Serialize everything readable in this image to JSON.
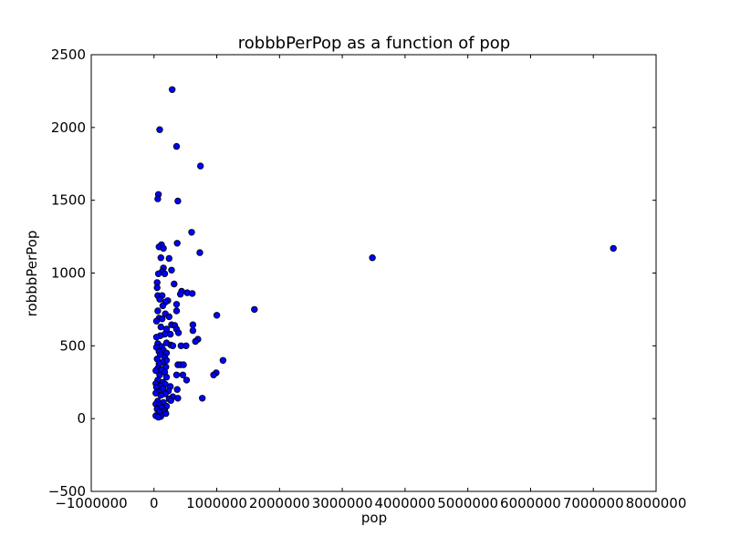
{
  "chart_data": {
    "type": "scatter",
    "title": "robbbPerPop as a function of pop",
    "xlabel": "pop",
    "ylabel": "robbbPerPop",
    "xlim": [
      -1000000,
      8000000
    ],
    "ylim": [
      -500,
      2500
    ],
    "x_ticks": [
      -1000000,
      0,
      1000000,
      2000000,
      3000000,
      4000000,
      5000000,
      6000000,
      7000000,
      8000000
    ],
    "x_tick_labels": [
      "−1000000",
      "0",
      "1000000",
      "2000000",
      "3000000",
      "4000000",
      "5000000",
      "6000000",
      "7000000",
      "8000000"
    ],
    "y_ticks": [
      -500,
      0,
      500,
      1000,
      1500,
      2000,
      2500
    ],
    "y_tick_labels": [
      "−500",
      "0",
      "500",
      "1000",
      "1500",
      "2000",
      "2500"
    ],
    "grid": false,
    "marker_color": "#0000ff",
    "marker_edge_color": "#000000",
    "points": [
      [
        290000,
        2260
      ],
      [
        90000,
        1985
      ],
      [
        360000,
        1870
      ],
      [
        740000,
        1735
      ],
      [
        70000,
        1540
      ],
      [
        60000,
        1510
      ],
      [
        380000,
        1495
      ],
      [
        600000,
        1280
      ],
      [
        370000,
        1205
      ],
      [
        120000,
        1195
      ],
      [
        80000,
        1180
      ],
      [
        150000,
        1170
      ],
      [
        730000,
        1140
      ],
      [
        3480000,
        1105
      ],
      [
        7320000,
        1170
      ],
      [
        110000,
        1105
      ],
      [
        240000,
        1100
      ],
      [
        150000,
        1035
      ],
      [
        280000,
        1020
      ],
      [
        130000,
        1010
      ],
      [
        70000,
        995
      ],
      [
        170000,
        995
      ],
      [
        320000,
        925
      ],
      [
        50000,
        935
      ],
      [
        50000,
        900
      ],
      [
        440000,
        875
      ],
      [
        530000,
        865
      ],
      [
        610000,
        860
      ],
      [
        420000,
        855
      ],
      [
        60000,
        845
      ],
      [
        130000,
        845
      ],
      [
        220000,
        810
      ],
      [
        90000,
        820
      ],
      [
        180000,
        800
      ],
      [
        360000,
        785
      ],
      [
        140000,
        775
      ],
      [
        1600000,
        750
      ],
      [
        60000,
        740
      ],
      [
        360000,
        740
      ],
      [
        180000,
        720
      ],
      [
        1000000,
        710
      ],
      [
        240000,
        700
      ],
      [
        80000,
        690
      ],
      [
        130000,
        685
      ],
      [
        40000,
        670
      ],
      [
        280000,
        645
      ],
      [
        330000,
        640
      ],
      [
        620000,
        645
      ],
      [
        110000,
        630
      ],
      [
        200000,
        615
      ],
      [
        360000,
        615
      ],
      [
        620000,
        605
      ],
      [
        390000,
        590
      ],
      [
        170000,
        580
      ],
      [
        260000,
        580
      ],
      [
        100000,
        570
      ],
      [
        40000,
        560
      ],
      [
        700000,
        545
      ],
      [
        660000,
        530
      ],
      [
        200000,
        520
      ],
      [
        60000,
        515
      ],
      [
        270000,
        505
      ],
      [
        300000,
        500
      ],
      [
        430000,
        500
      ],
      [
        510000,
        500
      ],
      [
        120000,
        495
      ],
      [
        40000,
        490
      ],
      [
        150000,
        470
      ],
      [
        80000,
        460
      ],
      [
        200000,
        450
      ],
      [
        100000,
        440
      ],
      [
        170000,
        420
      ],
      [
        50000,
        410
      ],
      [
        200000,
        400
      ],
      [
        1100000,
        400
      ],
      [
        130000,
        385
      ],
      [
        80000,
        375
      ],
      [
        380000,
        370
      ],
      [
        420000,
        370
      ],
      [
        470000,
        370
      ],
      [
        190000,
        355
      ],
      [
        60000,
        345
      ],
      [
        120000,
        335
      ],
      [
        30000,
        330
      ],
      [
        170000,
        320
      ],
      [
        990000,
        315
      ],
      [
        950000,
        300
      ],
      [
        360000,
        300
      ],
      [
        460000,
        300
      ],
      [
        90000,
        300
      ],
      [
        200000,
        285
      ],
      [
        520000,
        265
      ],
      [
        60000,
        265
      ],
      [
        140000,
        250
      ],
      [
        30000,
        240
      ],
      [
        180000,
        235
      ],
      [
        100000,
        225
      ],
      [
        260000,
        220
      ],
      [
        40000,
        215
      ],
      [
        140000,
        205
      ],
      [
        370000,
        200
      ],
      [
        230000,
        190
      ],
      [
        60000,
        185
      ],
      [
        30000,
        175
      ],
      [
        180000,
        170
      ],
      [
        110000,
        160
      ],
      [
        300000,
        150
      ],
      [
        770000,
        140
      ],
      [
        380000,
        140
      ],
      [
        240000,
        135
      ],
      [
        270000,
        125
      ],
      [
        60000,
        120
      ],
      [
        150000,
        110
      ],
      [
        30000,
        100
      ],
      [
        90000,
        95
      ],
      [
        200000,
        85
      ],
      [
        120000,
        75
      ],
      [
        50000,
        65
      ],
      [
        170000,
        55
      ],
      [
        80000,
        45
      ],
      [
        190000,
        35
      ],
      [
        30000,
        20
      ],
      [
        110000,
        15
      ],
      [
        70000,
        10
      ]
    ]
  }
}
